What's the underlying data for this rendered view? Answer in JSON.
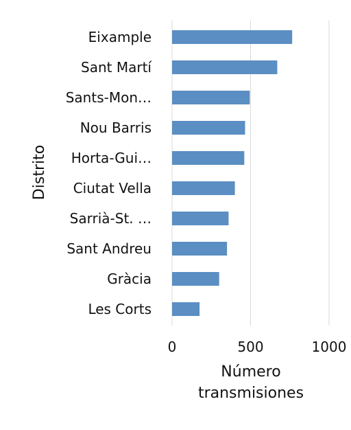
{
  "chart_data": {
    "type": "bar",
    "orientation": "horizontal",
    "categories": [
      "Eixample",
      "Sant Martí",
      "Sants-Mon…",
      "Nou Barris",
      "Horta-Gui…",
      "Ciutat Vella",
      "Sarrià-St. …",
      "Sant Andreu",
      "Gràcia",
      "Les Corts"
    ],
    "values": [
      765,
      670,
      495,
      465,
      460,
      400,
      360,
      350,
      300,
      175
    ],
    "xlabel_lines": [
      "Número",
      "transmisiones"
    ],
    "ylabel": "Distrito",
    "xticks": [
      0,
      500,
      1000
    ],
    "xlim": [
      0,
      1000
    ],
    "grid": true,
    "colors": {
      "bar": "#5b8ec2",
      "grid": "#d9d9d9",
      "text": "#111111"
    }
  }
}
